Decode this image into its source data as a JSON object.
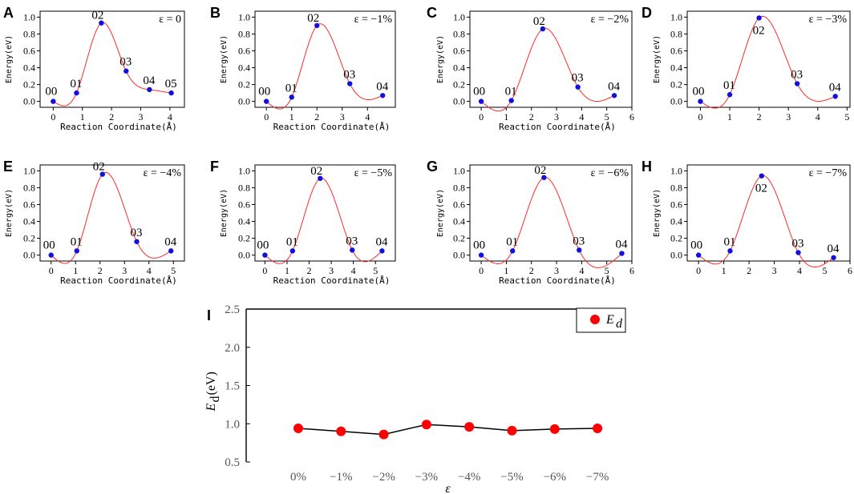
{
  "chart_data": [
    {
      "type": "line",
      "panel": "A",
      "strain_label": "ε = 0",
      "xlabel": "Reaction Coordinate(Å)",
      "ylabel": "Energy(eV)",
      "xlim": [
        -0.45,
        4.5
      ],
      "xticks": [
        "0",
        "1",
        "2",
        "3",
        "4"
      ],
      "xtick_values": [
        0,
        1,
        2,
        3,
        4
      ],
      "ylim": [
        -0.07,
        1.07
      ],
      "yticks": [
        "0.0",
        "0.2",
        "0.4",
        "0.6",
        "0.8",
        "1.0"
      ],
      "ytick_values": [
        0,
        0.2,
        0.4,
        0.6,
        0.8,
        1.0
      ],
      "points": [
        {
          "label": "00",
          "x": 0,
          "y": 0.0
        },
        {
          "label": "01",
          "x": 0.8,
          "y": 0.1
        },
        {
          "label": "02",
          "x": 1.65,
          "y": 0.93
        },
        {
          "label": "03",
          "x": 2.5,
          "y": 0.36
        },
        {
          "label": "04",
          "x": 3.3,
          "y": 0.14
        },
        {
          "label": "05",
          "x": 4.05,
          "y": 0.1
        }
      ]
    },
    {
      "type": "line",
      "panel": "B",
      "strain_label": "ε = −1%",
      "xlabel": "Reaction Coordinate(Å)",
      "ylabel": "Energy(eV)",
      "xlim": [
        -0.45,
        5.1
      ],
      "xticks": [
        "0",
        "1",
        "2",
        "3",
        "4"
      ],
      "xtick_values": [
        0,
        1,
        2,
        3,
        4
      ],
      "ylim": [
        -0.07,
        1.07
      ],
      "yticks": [
        "0.0",
        "0.2",
        "0.4",
        "0.6",
        "0.8",
        "1.0"
      ],
      "ytick_values": [
        0,
        0.2,
        0.4,
        0.6,
        0.8,
        1.0
      ],
      "points": [
        {
          "label": "00",
          "x": 0,
          "y": 0.0
        },
        {
          "label": "01",
          "x": 1.0,
          "y": 0.05
        },
        {
          "label": "02",
          "x": 2.0,
          "y": 0.9
        },
        {
          "label": "03",
          "x": 3.3,
          "y": 0.21
        },
        {
          "label": "04",
          "x": 4.6,
          "y": 0.07
        }
      ]
    },
    {
      "type": "line",
      "panel": "C",
      "strain_label": "ε = −2%",
      "xlabel": "Reaction Coordinate(Å)",
      "ylabel": "Energy(eV)",
      "xlim": [
        -0.45,
        6.0
      ],
      "xticks": [
        "0",
        "1",
        "2",
        "3",
        "4",
        "5",
        "6"
      ],
      "xtick_values": [
        0,
        1,
        2,
        3,
        4,
        5,
        6
      ],
      "ylim": [
        -0.07,
        1.07
      ],
      "yticks": [
        "0.0",
        "0.2",
        "0.4",
        "0.6",
        "0.8",
        "1.0"
      ],
      "ytick_values": [
        0,
        0.2,
        0.4,
        0.6,
        0.8,
        1.0
      ],
      "points": [
        {
          "label": "00",
          "x": 0,
          "y": 0.0
        },
        {
          "label": "01",
          "x": 1.2,
          "y": 0.01
        },
        {
          "label": "02",
          "x": 2.45,
          "y": 0.86
        },
        {
          "label": "03",
          "x": 3.85,
          "y": 0.17
        },
        {
          "label": "04",
          "x": 5.3,
          "y": 0.07
        }
      ]
    },
    {
      "type": "line",
      "panel": "D",
      "strain_label": "ε = −3%",
      "xlabel": "",
      "ylabel": "Energy(eV)",
      "xlim": [
        -0.45,
        5.1
      ],
      "xticks": [
        "0",
        "1",
        "2",
        "3",
        "4",
        "5"
      ],
      "xtick_values": [
        0,
        1,
        2,
        3,
        4,
        5
      ],
      "ylim": [
        -0.07,
        1.07
      ],
      "yticks": [
        "0.0",
        "0.2",
        "0.4",
        "0.6",
        "0.8",
        "1.0"
      ],
      "ytick_values": [
        0,
        0.2,
        0.4,
        0.6,
        0.8,
        1.0
      ],
      "points": [
        {
          "label": "00",
          "x": 0,
          "y": 0.0
        },
        {
          "label": "01",
          "x": 1.0,
          "y": 0.08
        },
        {
          "label": "02",
          "x": 2.0,
          "y": 0.99
        },
        {
          "label": "03",
          "x": 3.3,
          "y": 0.21
        },
        {
          "label": "04",
          "x": 4.6,
          "y": 0.06
        }
      ]
    },
    {
      "type": "line",
      "panel": "E",
      "strain_label": "ε = −4%",
      "xlabel": "Reaction Coordinate(Å)",
      "ylabel": "Energy(eV)",
      "xlim": [
        -0.45,
        5.45
      ],
      "xticks": [
        "0",
        "1",
        "2",
        "3",
        "4",
        "5"
      ],
      "xtick_values": [
        0,
        1,
        2,
        3,
        4,
        5
      ],
      "ylim": [
        -0.07,
        1.07
      ],
      "yticks": [
        "0.0",
        "0.2",
        "0.4",
        "0.6",
        "0.8",
        "1.0"
      ],
      "ytick_values": [
        0,
        0.2,
        0.4,
        0.6,
        0.8,
        1.0
      ],
      "points": [
        {
          "label": "00",
          "x": 0,
          "y": 0.0
        },
        {
          "label": "01",
          "x": 1.05,
          "y": 0.05
        },
        {
          "label": "02",
          "x": 2.1,
          "y": 0.96
        },
        {
          "label": "03",
          "x": 3.5,
          "y": 0.16
        },
        {
          "label": "04",
          "x": 4.9,
          "y": 0.05
        }
      ]
    },
    {
      "type": "line",
      "panel": "F",
      "strain_label": "ε = −5%",
      "xlabel": "Reaction Coordinate(Å)",
      "ylabel": "Energy(eV)",
      "xlim": [
        -0.45,
        5.9
      ],
      "xticks": [
        "0",
        "1",
        "2",
        "3",
        "4",
        "5"
      ],
      "xtick_values": [
        0,
        1,
        2,
        3,
        4,
        5
      ],
      "ylim": [
        -0.07,
        1.07
      ],
      "yticks": [
        "0.0",
        "0.2",
        "0.4",
        "0.6",
        "0.8",
        "1.0"
      ],
      "ytick_values": [
        0,
        0.2,
        0.4,
        0.6,
        0.8,
        1.0
      ],
      "points": [
        {
          "label": "00",
          "x": 0,
          "y": 0.0
        },
        {
          "label": "01",
          "x": 1.25,
          "y": 0.05
        },
        {
          "label": "02",
          "x": 2.5,
          "y": 0.91
        },
        {
          "label": "03",
          "x": 3.95,
          "y": 0.06
        },
        {
          "label": "04",
          "x": 5.3,
          "y": 0.05
        }
      ]
    },
    {
      "type": "line",
      "panel": "G",
      "strain_label": "ε = −6%",
      "xlabel": "Reaction Coordinate(Å)",
      "ylabel": "Energy(eV)",
      "xlim": [
        -0.45,
        6.0
      ],
      "xticks": [
        "0",
        "1",
        "2",
        "3",
        "4",
        "5",
        "6"
      ],
      "xtick_values": [
        0,
        1,
        2,
        3,
        4,
        5,
        6
      ],
      "ylim": [
        -0.07,
        1.07
      ],
      "yticks": [
        "0.0",
        "0.2",
        "0.4",
        "0.6",
        "0.8",
        "1.0"
      ],
      "ytick_values": [
        0,
        0.2,
        0.4,
        0.6,
        0.8,
        1.0
      ],
      "points": [
        {
          "label": "00",
          "x": 0,
          "y": 0.0
        },
        {
          "label": "01",
          "x": 1.25,
          "y": 0.05
        },
        {
          "label": "02",
          "x": 2.5,
          "y": 0.92
        },
        {
          "label": "03",
          "x": 3.9,
          "y": 0.06
        },
        {
          "label": "04",
          "x": 5.6,
          "y": 0.02
        }
      ]
    },
    {
      "type": "line",
      "panel": "H",
      "strain_label": "ε = −7%",
      "xlabel": "",
      "ylabel": "Energy(eV)",
      "xlim": [
        -0.45,
        6.0
      ],
      "xticks": [
        "0",
        "1",
        "2",
        "3",
        "4",
        "5",
        "6"
      ],
      "xtick_values": [
        0,
        1,
        2,
        3,
        4,
        5,
        6
      ],
      "ylim": [
        -0.07,
        1.07
      ],
      "yticks": [
        "0.0",
        "0.2",
        "0.4",
        "0.6",
        "0.8",
        "1.0"
      ],
      "ytick_values": [
        0,
        0.2,
        0.4,
        0.6,
        0.8,
        1.0
      ],
      "points": [
        {
          "label": "00",
          "x": 0,
          "y": 0.0
        },
        {
          "label": "01",
          "x": 1.25,
          "y": 0.05
        },
        {
          "label": "02",
          "x": 2.5,
          "y": 0.94
        },
        {
          "label": "03",
          "x": 3.95,
          "y": 0.03
        },
        {
          "label": "04",
          "x": 5.35,
          "y": -0.03
        }
      ]
    },
    {
      "type": "line",
      "panel": "I",
      "title": "",
      "xlabel": "ε",
      "ylabel": "E_d (eV)",
      "categories": [
        "0%",
        "−1%",
        "−2%",
        "−3%",
        "−4%",
        "−5%",
        "−6%",
        "−7%"
      ],
      "series": [
        {
          "name": "E_d",
          "values": [
            0.94,
            0.9,
            0.86,
            0.99,
            0.96,
            0.91,
            0.93,
            0.94
          ]
        }
      ],
      "ylim": [
        0.5,
        2.5
      ],
      "yticks": [
        "0.5",
        "1.0",
        "1.5",
        "2.0",
        "2.5"
      ],
      "ytick_values": [
        0.5,
        1.0,
        1.5,
        2.0,
        2.5
      ],
      "legend": {
        "label": "E",
        "subscript": "d",
        "position": "top-right"
      },
      "ylabel_main": "E",
      "ylabel_sub": "d",
      "ylabel_unit": "(eV)"
    }
  ],
  "colors": {
    "curve": "#ff2a2a",
    "point": "#1010e0",
    "big_point": "#ff0000",
    "axis": "#000000",
    "line": "#000000"
  }
}
